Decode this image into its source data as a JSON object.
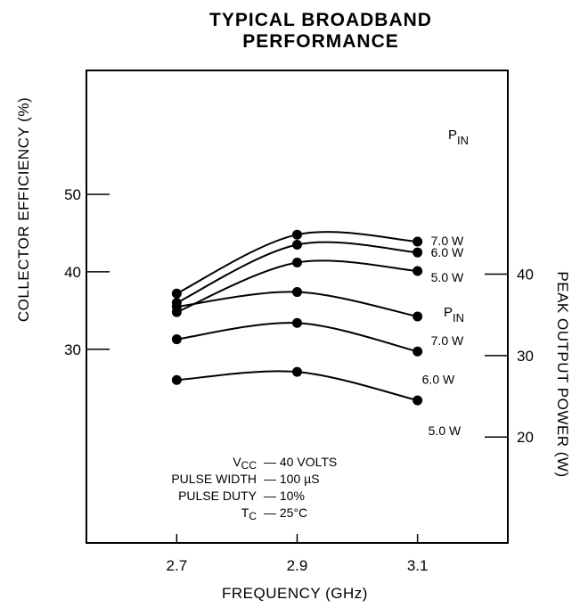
{
  "chart_data": {
    "type": "line",
    "title_line1": "TYPICAL BROADBAND",
    "title_line2": "PERFORMANCE",
    "xlabel": "FREQUENCY (GHz)",
    "ylabel_left": "COLLECTOR EFFICIENCY (%)",
    "ylabel_right": "PEAK OUTPUT POWER  (W)",
    "x_ticks": [
      "2.7",
      "2.9",
      "3.1"
    ],
    "y_left_ticks": [
      "30",
      "40",
      "50"
    ],
    "y_right_ticks": [
      "20",
      "30",
      "40"
    ],
    "xlim": [
      2.55,
      3.25
    ],
    "y_left_lim": [
      5,
      66
    ],
    "y_right_lim": [
      7,
      65
    ],
    "x": [
      2.7,
      2.9,
      3.1
    ],
    "efficiency_series": [
      {
        "label": "7.0 W",
        "values": [
          37.2,
          44.8,
          43.9
        ]
      },
      {
        "label": "6.0 W",
        "values": [
          36.0,
          43.5,
          42.5
        ]
      },
      {
        "label": "5.0 W",
        "values": [
          34.8,
          41.2,
          40.1
        ]
      }
    ],
    "efficiency_legend_title": "P",
    "efficiency_legend_sub": "IN",
    "power_series": [
      {
        "label": "7.0 W",
        "values": [
          36.0,
          37.8,
          34.8
        ]
      },
      {
        "label": "6.0 W",
        "values": [
          32.0,
          34.0,
          30.5
        ]
      },
      {
        "label": "5.0 W",
        "values": [
          27.0,
          28.0,
          24.5
        ]
      }
    ],
    "power_legend_title": "P",
    "power_legend_sub": "IN",
    "conditions": [
      {
        "label": "V",
        "sub": "CC",
        "value": "— 40 VOLTS"
      },
      {
        "label": "PULSE WIDTH",
        "sub": "",
        "value": "— 100 µS"
      },
      {
        "label": "PULSE DUTY",
        "sub": "",
        "value": "— 10%"
      },
      {
        "label": "T",
        "sub": "C",
        "value": "— 25°C"
      }
    ]
  }
}
